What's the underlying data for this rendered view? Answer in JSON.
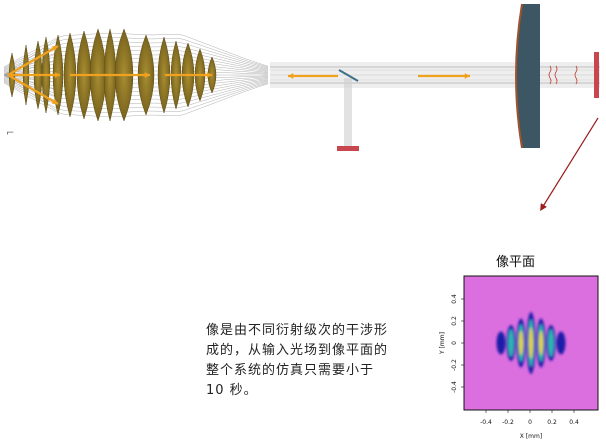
{
  "colors": {
    "lens": "#8a7324",
    "lens_dark": "#5e4e14",
    "beam": "#b9b9b9",
    "arrow": "#f0a21f",
    "mirror_red": "#c8474f",
    "big_lens": "#3c5664",
    "big_lens_edge": "#a0522d",
    "pointer": "#9a1e1e",
    "plot_bg": "#dc6fe0"
  },
  "caption": {
    "line1": "像是由不同衍射级次的干涉形",
    "line2": "成的，从输入光场到像平面的",
    "line3": "整个系统的仿真只需要小于",
    "line4": "10 秒。"
  },
  "image_plane": {
    "title": "像平面",
    "xlabel": "X [mm]",
    "ylabel": "Y [mm]",
    "x_ticks": [
      "-0.4",
      "-0.2",
      "0",
      "0.2",
      "0.4"
    ],
    "y_ticks": [
      "0.4",
      "0.2",
      "0",
      "-0.2",
      "-0.4"
    ]
  },
  "coord_glyph": "⌐"
}
